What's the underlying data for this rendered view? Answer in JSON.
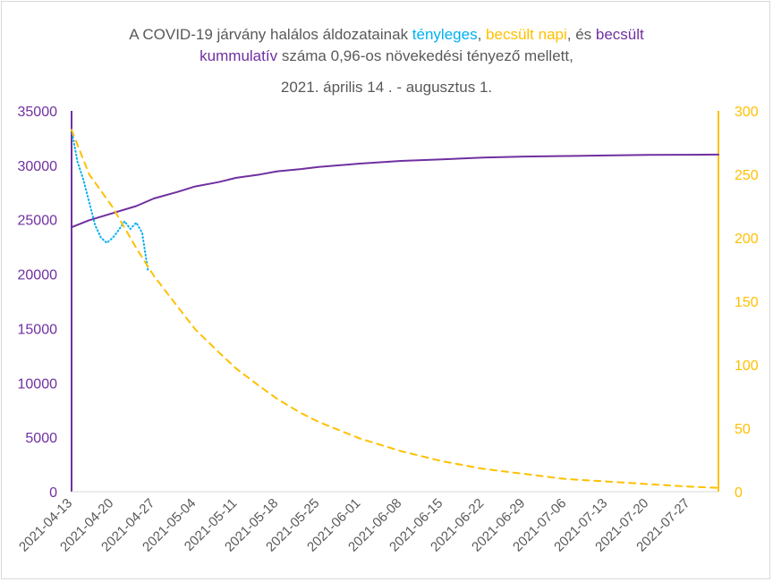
{
  "title": {
    "line1": [
      {
        "text": "A COVID-19 járvány halálos áldozatainak ",
        "color": "#595959"
      },
      {
        "text": "tényleges",
        "color": "#00b0f0"
      },
      {
        "text": ", ",
        "color": "#595959"
      },
      {
        "text": "becsült napi",
        "color": "#ffc000"
      },
      {
        "text": ",  és ",
        "color": "#595959"
      },
      {
        "text": "becsült",
        "color": "#7030a0"
      }
    ],
    "line2": [
      {
        "text": "kummulatív",
        "color": "#7030a0"
      },
      {
        "text": " száma  0,96-os növekedési tényező mellett,",
        "color": "#595959"
      }
    ],
    "line3": "2021. április 14 . - augusztus 1."
  },
  "chart_data": {
    "type": "line",
    "x_tick_labels": [
      "2021-04-13",
      "2021-04-20",
      "2021-04-27",
      "2021-05-04",
      "2021-05-11",
      "2021-05-18",
      "2021-05-25",
      "2021-06-01",
      "2021-06-08",
      "2021-06-15",
      "2021-06-22",
      "2021-06-29",
      "2021-07-06",
      "2021-07-13",
      "2021-07-20",
      "2021-07-27"
    ],
    "x_range": [
      "2021-04-13",
      "2021-08-01"
    ],
    "y_left": {
      "ticks": [
        0,
        5000,
        10000,
        15000,
        20000,
        25000,
        30000,
        35000
      ],
      "range": [
        0,
        35000
      ],
      "color": "#7030a0"
    },
    "y_right": {
      "ticks": [
        0,
        50,
        100,
        150,
        200,
        250,
        300
      ],
      "range": [
        0,
        300
      ],
      "color": "#ffc000"
    },
    "grid": false,
    "legend": "none",
    "series": [
      {
        "axis": "left",
        "color": "#7030a0",
        "style": "solid",
        "points": [
          {
            "x": "2021-04-13",
            "y": 24300
          },
          {
            "x": "2021-04-16",
            "y": 24950
          },
          {
            "x": "2021-04-20",
            "y": 25600
          },
          {
            "x": "2021-04-24",
            "y": 26250
          },
          {
            "x": "2021-04-27",
            "y": 26950
          },
          {
            "x": "2021-05-01",
            "y": 27550
          },
          {
            "x": "2021-05-04",
            "y": 28050
          },
          {
            "x": "2021-05-08",
            "y": 28450
          },
          {
            "x": "2021-05-11",
            "y": 28850
          },
          {
            "x": "2021-05-15",
            "y": 29150
          },
          {
            "x": "2021-05-18",
            "y": 29450
          },
          {
            "x": "2021-05-22",
            "y": 29650
          },
          {
            "x": "2021-05-25",
            "y": 29850
          },
          {
            "x": "2021-06-01",
            "y": 30150
          },
          {
            "x": "2021-06-08",
            "y": 30400
          },
          {
            "x": "2021-06-15",
            "y": 30550
          },
          {
            "x": "2021-06-22",
            "y": 30700
          },
          {
            "x": "2021-06-29",
            "y": 30800
          },
          {
            "x": "2021-07-06",
            "y": 30850
          },
          {
            "x": "2021-07-13",
            "y": 30900
          },
          {
            "x": "2021-07-20",
            "y": 30950
          },
          {
            "x": "2021-07-27",
            "y": 30970
          },
          {
            "x": "2021-08-01",
            "y": 30980
          }
        ]
      },
      {
        "axis": "right",
        "color": "#00b0f0",
        "style": "dotted",
        "points": [
          {
            "x": "2021-04-13",
            "y": 285
          },
          {
            "x": "2021-04-14",
            "y": 260
          },
          {
            "x": "2021-04-15",
            "y": 246
          },
          {
            "x": "2021-04-16",
            "y": 228
          },
          {
            "x": "2021-04-17",
            "y": 210
          },
          {
            "x": "2021-04-18",
            "y": 200
          },
          {
            "x": "2021-04-19",
            "y": 196
          },
          {
            "x": "2021-04-20",
            "y": 200
          },
          {
            "x": "2021-04-21",
            "y": 206
          },
          {
            "x": "2021-04-22",
            "y": 213
          },
          {
            "x": "2021-04-23",
            "y": 207
          },
          {
            "x": "2021-04-24",
            "y": 212
          },
          {
            "x": "2021-04-25",
            "y": 204
          },
          {
            "x": "2021-04-26",
            "y": 174
          }
        ]
      },
      {
        "axis": "right",
        "color": "#ffc000",
        "style": "dashed",
        "points": [
          {
            "x": "2021-04-13",
            "y": 285
          },
          {
            "x": "2021-04-16",
            "y": 250
          },
          {
            "x": "2021-04-20",
            "y": 224
          },
          {
            "x": "2021-04-24",
            "y": 192
          },
          {
            "x": "2021-04-27",
            "y": 170
          },
          {
            "x": "2021-05-01",
            "y": 146
          },
          {
            "x": "2021-05-04",
            "y": 128
          },
          {
            "x": "2021-05-08",
            "y": 110
          },
          {
            "x": "2021-05-11",
            "y": 97
          },
          {
            "x": "2021-05-15",
            "y": 83
          },
          {
            "x": "2021-05-18",
            "y": 73
          },
          {
            "x": "2021-05-22",
            "y": 62
          },
          {
            "x": "2021-05-25",
            "y": 55
          },
          {
            "x": "2021-06-01",
            "y": 42
          },
          {
            "x": "2021-06-08",
            "y": 32
          },
          {
            "x": "2021-06-15",
            "y": 24
          },
          {
            "x": "2021-06-22",
            "y": 18
          },
          {
            "x": "2021-06-29",
            "y": 14
          },
          {
            "x": "2021-07-06",
            "y": 10
          },
          {
            "x": "2021-07-13",
            "y": 8
          },
          {
            "x": "2021-07-20",
            "y": 6
          },
          {
            "x": "2021-07-27",
            "y": 4
          },
          {
            "x": "2021-08-01",
            "y": 3
          }
        ]
      }
    ]
  }
}
